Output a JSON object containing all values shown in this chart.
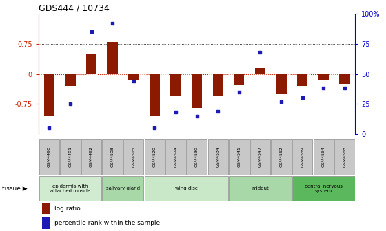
{
  "title": "GDS444 / 10734",
  "samples": [
    "GSM4490",
    "GSM4491",
    "GSM4492",
    "GSM4508",
    "GSM4515",
    "GSM4520",
    "GSM4524",
    "GSM4530",
    "GSM4534",
    "GSM4541",
    "GSM4547",
    "GSM4552",
    "GSM4559",
    "GSM4564",
    "GSM4568"
  ],
  "log_ratio": [
    -1.05,
    -0.3,
    0.5,
    0.8,
    -0.15,
    -1.05,
    -0.55,
    -0.85,
    -0.55,
    -0.28,
    0.15,
    -0.5,
    -0.3,
    -0.15,
    -0.25
  ],
  "percentile": [
    5,
    25,
    85,
    92,
    44,
    5,
    18,
    15,
    19,
    35,
    68,
    27,
    30,
    38,
    38
  ],
  "ylim": [
    -1.5,
    1.5
  ],
  "bar_color": "#8B1A00",
  "dot_color": "#1C1CB4",
  "tissue_groups": [
    {
      "label": "epidermis with\nattached muscle",
      "start": 0,
      "end": 3,
      "color": "#d0ebd0"
    },
    {
      "label": "salivary gland",
      "start": 3,
      "end": 5,
      "color": "#a8d8a8"
    },
    {
      "label": "wing disc",
      "start": 5,
      "end": 9,
      "color": "#c8e8c8"
    },
    {
      "label": "midgut",
      "start": 9,
      "end": 12,
      "color": "#a8d8a8"
    },
    {
      "label": "central nervous\nsystem",
      "start": 12,
      "end": 15,
      "color": "#5cb85c"
    }
  ],
  "left_axis_color": "#cc2200",
  "right_axis_color": "#0000cc",
  "sample_box_color": "#c8c8c8",
  "sample_box_edge": "#888888"
}
